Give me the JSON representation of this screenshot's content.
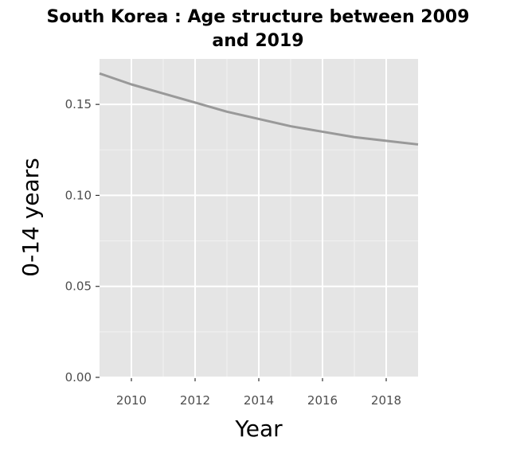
{
  "chart_data": {
    "type": "line",
    "title_lines": [
      "South Korea : Age structure between 2009",
      "and 2019"
    ],
    "xlabel": "Year",
    "ylabel": "0-14 years",
    "xlim": [
      2009,
      2019
    ],
    "ylim": [
      0,
      0.175
    ],
    "x_ticks": [
      2010,
      2012,
      2014,
      2016,
      2018
    ],
    "y_ticks": [
      0.0,
      0.05,
      0.1,
      0.15
    ],
    "y_tick_labels": [
      "0.00",
      "0.05",
      "0.10",
      "0.15"
    ],
    "grid": true,
    "legend": "none",
    "colors": {
      "panel": "#e5e5e5",
      "grid": "#ffffff",
      "line": "#999999"
    },
    "series": [
      {
        "x": [
          2009,
          2010,
          2011,
          2012,
          2013,
          2014,
          2015,
          2016,
          2017,
          2018,
          2019
        ],
        "values": [
          0.167,
          0.161,
          0.156,
          0.151,
          0.146,
          0.142,
          0.138,
          0.135,
          0.132,
          0.13,
          0.128
        ]
      }
    ]
  }
}
